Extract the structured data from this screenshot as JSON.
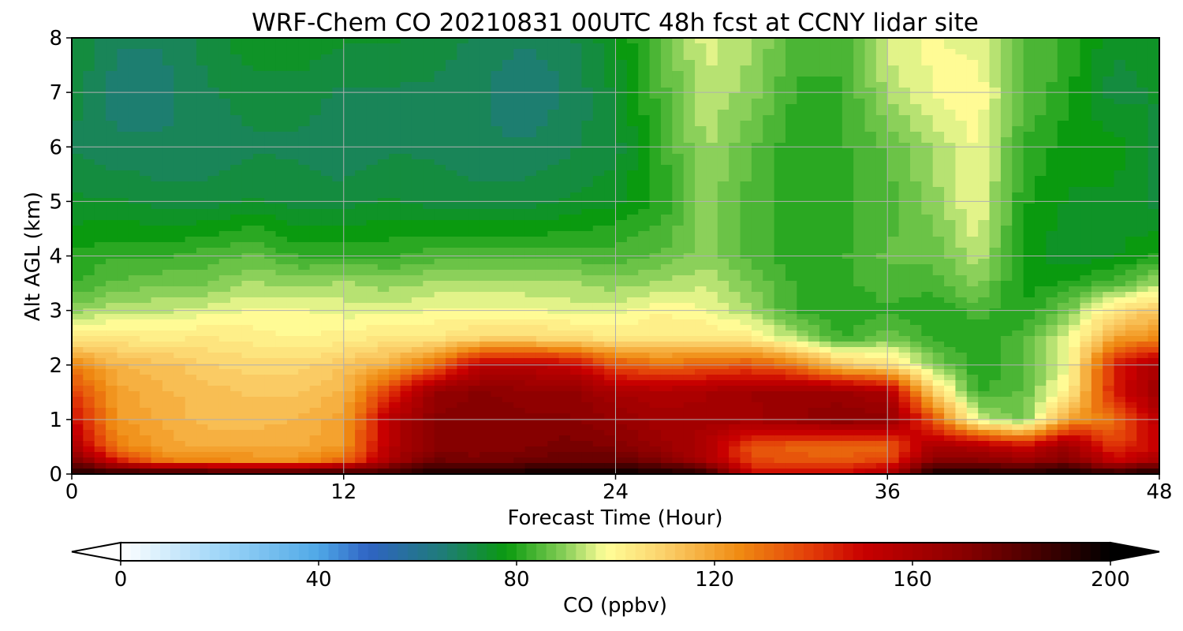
{
  "chart_data": {
    "type": "heatmap",
    "title": "WRF-Chem CO  20210831 00UTC 48h fcst at CCNY lidar site",
    "xlabel": "Forecast Time (Hour)",
    "ylabel": "Alt AGL (km)",
    "xlim": [
      0,
      48
    ],
    "ylim": [
      0,
      8
    ],
    "xticks": [
      0,
      12,
      24,
      36,
      48
    ],
    "yticks": [
      0,
      1,
      2,
      3,
      4,
      5,
      6,
      7,
      8
    ],
    "grid": true,
    "colorbar": {
      "label": "CO  (ppbv)",
      "min": 0,
      "max": 200,
      "ticks": [
        0,
        40,
        80,
        120,
        160,
        200
      ],
      "extend": "both",
      "colors": [
        [
          0,
          "#ffffff"
        ],
        [
          20,
          "#9fd6f8"
        ],
        [
          40,
          "#4fa8e6"
        ],
        [
          50,
          "#2f63c4"
        ],
        [
          65,
          "#1f7c78"
        ],
        [
          78,
          "#0a9a0f"
        ],
        [
          90,
          "#8bd05a"
        ],
        [
          98,
          "#ffff99"
        ],
        [
          110,
          "#fbd06a"
        ],
        [
          125,
          "#f08b12"
        ],
        [
          140,
          "#e23a08"
        ],
        [
          150,
          "#c80000"
        ],
        [
          170,
          "#8a0000"
        ],
        [
          188,
          "#3a0000"
        ],
        [
          200,
          "#000000"
        ]
      ]
    },
    "x": [
      0,
      2,
      4,
      6,
      8,
      10,
      12,
      14,
      16,
      18,
      20,
      22,
      24,
      26,
      28,
      30,
      32,
      34,
      36,
      38,
      40,
      42,
      44,
      46,
      48
    ],
    "y": [
      0,
      0.25,
      0.5,
      1,
      1.5,
      2,
      2.5,
      3,
      3.5,
      4,
      5,
      6,
      7,
      8
    ],
    "z": [
      [
        195,
        193,
        192,
        192,
        192,
        192,
        192,
        188,
        196,
        198,
        198,
        199,
        199,
        198,
        192,
        150,
        150,
        150,
        160,
        196,
        196,
        195,
        198,
        192,
        198
      ],
      [
        175,
        145,
        128,
        125,
        124,
        124,
        132,
        160,
        176,
        174,
        176,
        178,
        178,
        172,
        160,
        138,
        135,
        135,
        138,
        170,
        170,
        165,
        172,
        150,
        162
      ],
      [
        160,
        128,
        120,
        118,
        118,
        118,
        122,
        155,
        170,
        170,
        172,
        174,
        172,
        165,
        158,
        135,
        132,
        130,
        132,
        160,
        158,
        150,
        165,
        140,
        150
      ],
      [
        150,
        122,
        118,
        114,
        114,
        116,
        120,
        155,
        170,
        172,
        170,
        170,
        166,
        162,
        162,
        162,
        166,
        170,
        168,
        136,
        96,
        86,
        122,
        130,
        155
      ],
      [
        140,
        120,
        116,
        114,
        112,
        112,
        116,
        140,
        166,
        170,
        168,
        168,
        160,
        158,
        160,
        164,
        165,
        164,
        160,
        110,
        82,
        86,
        102,
        145,
        165
      ],
      [
        126,
        116,
        114,
        110,
        108,
        108,
        112,
        118,
        130,
        155,
        155,
        152,
        136,
        130,
        134,
        136,
        128,
        112,
        106,
        90,
        80,
        84,
        98,
        145,
        160
      ],
      [
        104,
        104,
        102,
        104,
        102,
        100,
        102,
        104,
        104,
        108,
        108,
        106,
        104,
        104,
        104,
        102,
        92,
        82,
        88,
        82,
        80,
        84,
        96,
        120,
        125
      ],
      [
        90,
        94,
        94,
        96,
        98,
        98,
        96,
        96,
        98,
        98,
        98,
        96,
        96,
        100,
        98,
        92,
        82,
        80,
        82,
        80,
        84,
        80,
        88,
        105,
        112
      ],
      [
        82,
        86,
        88,
        88,
        92,
        90,
        92,
        90,
        92,
        92,
        92,
        92,
        90,
        92,
        94,
        88,
        82,
        82,
        84,
        84,
        90,
        78,
        80,
        84,
        92
      ],
      [
        80,
        82,
        82,
        84,
        86,
        82,
        82,
        82,
        84,
        84,
        84,
        84,
        84,
        86,
        90,
        84,
        80,
        82,
        86,
        86,
        94,
        78,
        74,
        76,
        80
      ],
      [
        74,
        74,
        72,
        72,
        74,
        72,
        72,
        74,
        72,
        72,
        72,
        74,
        76,
        80,
        90,
        84,
        80,
        82,
        84,
        90,
        98,
        80,
        76,
        76,
        72
      ],
      [
        70,
        68,
        68,
        68,
        70,
        70,
        68,
        70,
        70,
        68,
        68,
        70,
        72,
        82,
        92,
        86,
        80,
        82,
        86,
        92,
        98,
        82,
        78,
        78,
        72
      ],
      [
        72,
        66,
        66,
        70,
        72,
        72,
        70,
        70,
        70,
        68,
        64,
        68,
        74,
        84,
        94,
        90,
        82,
        82,
        92,
        98,
        100,
        86,
        80,
        72,
        74
      ],
      [
        74,
        68,
        68,
        72,
        76,
        76,
        74,
        74,
        72,
        70,
        68,
        70,
        76,
        86,
        96,
        92,
        84,
        84,
        96,
        98,
        96,
        86,
        82,
        74,
        76
      ]
    ]
  }
}
